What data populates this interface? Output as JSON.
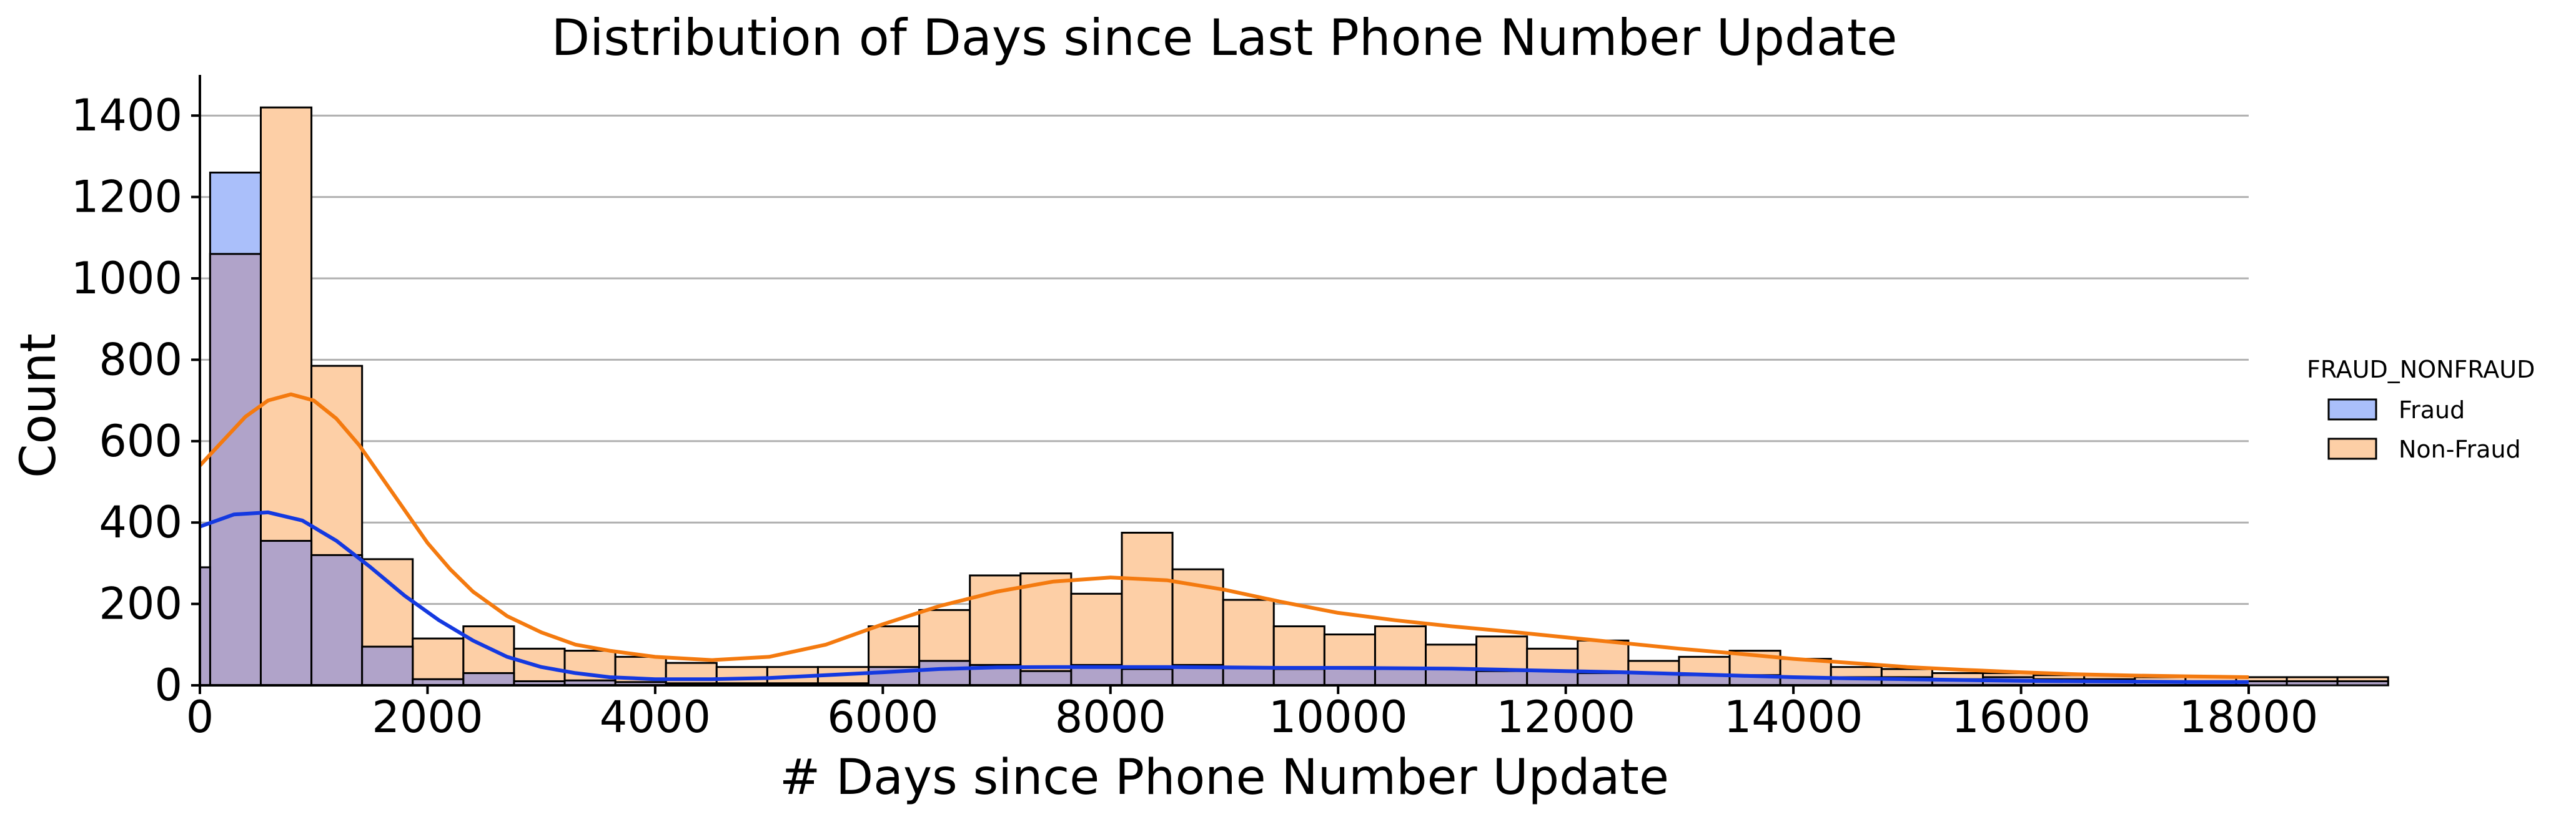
{
  "chart_data": {
    "type": "histogram",
    "title": "Distribution of Days since Last Phone Number Update",
    "xlabel": "# Days since Phone Number Update",
    "ylabel": "Count",
    "xlim": [
      0,
      18000
    ],
    "ylim": [
      0,
      1500
    ],
    "xticks": [
      0,
      2000,
      4000,
      6000,
      8000,
      10000,
      12000,
      14000,
      16000,
      18000
    ],
    "yticks": [
      0,
      200,
      400,
      600,
      800,
      1000,
      1200,
      1400
    ],
    "grid": "horizontal",
    "bin_width": 445,
    "bin_edges_start": 90,
    "overlap_color": "#b0a3c9",
    "legend": {
      "title": "FRAUD_NONFRAUD",
      "placement": "right",
      "entries": [
        "Fraud",
        "Non-Fraud"
      ]
    },
    "series": [
      {
        "name": "Fraud",
        "fill": "#aabffa",
        "line": "#1439e0",
        "counts": [
          1260,
          355,
          320,
          95,
          15,
          30,
          10,
          12,
          8,
          5,
          5,
          5,
          5,
          45,
          60,
          50,
          35,
          50,
          40,
          50,
          42,
          40,
          45,
          40,
          40,
          35,
          35,
          30,
          30,
          25,
          25,
          20,
          20,
          20,
          15,
          20,
          15,
          15,
          10,
          10,
          10,
          10,
          10
        ],
        "kde": [
          [
            0,
            390
          ],
          [
            300,
            420
          ],
          [
            600,
            425
          ],
          [
            900,
            405
          ],
          [
            1200,
            355
          ],
          [
            1500,
            290
          ],
          [
            1800,
            220
          ],
          [
            2100,
            160
          ],
          [
            2400,
            110
          ],
          [
            2700,
            70
          ],
          [
            3000,
            45
          ],
          [
            3300,
            30
          ],
          [
            3600,
            20
          ],
          [
            4000,
            15
          ],
          [
            4500,
            15
          ],
          [
            5000,
            18
          ],
          [
            5500,
            25
          ],
          [
            6000,
            32
          ],
          [
            6500,
            40
          ],
          [
            7000,
            44
          ],
          [
            7500,
            45
          ],
          [
            8000,
            45
          ],
          [
            8500,
            45
          ],
          [
            9000,
            44
          ],
          [
            9500,
            43
          ],
          [
            10000,
            43
          ],
          [
            10500,
            42
          ],
          [
            11000,
            41
          ],
          [
            11500,
            38
          ],
          [
            12000,
            35
          ],
          [
            12500,
            32
          ],
          [
            13000,
            28
          ],
          [
            13500,
            24
          ],
          [
            14000,
            20
          ],
          [
            14500,
            17
          ],
          [
            15000,
            15
          ],
          [
            15500,
            13
          ],
          [
            16000,
            11
          ],
          [
            16500,
            10
          ],
          [
            17000,
            9
          ],
          [
            17500,
            8
          ],
          [
            18000,
            8
          ]
        ]
      },
      {
        "name": "Non-Fraud",
        "fill": "#fdcfa6",
        "line": "#f47a0f",
        "counts": [
          1060,
          1420,
          785,
          310,
          115,
          145,
          90,
          85,
          70,
          55,
          45,
          45,
          45,
          145,
          185,
          270,
          275,
          225,
          375,
          285,
          210,
          145,
          125,
          145,
          100,
          120,
          90,
          110,
          60,
          70,
          85,
          65,
          45,
          40,
          30,
          30,
          25,
          25,
          20,
          20,
          20,
          20,
          20
        ],
        "kde": [
          [
            0,
            540
          ],
          [
            200,
            600
          ],
          [
            400,
            660
          ],
          [
            600,
            700
          ],
          [
            800,
            715
          ],
          [
            1000,
            700
          ],
          [
            1200,
            655
          ],
          [
            1400,
            590
          ],
          [
            1600,
            510
          ],
          [
            1800,
            430
          ],
          [
            2000,
            350
          ],
          [
            2200,
            285
          ],
          [
            2400,
            230
          ],
          [
            2700,
            170
          ],
          [
            3000,
            130
          ],
          [
            3300,
            100
          ],
          [
            3600,
            85
          ],
          [
            4000,
            70
          ],
          [
            4500,
            62
          ],
          [
            5000,
            70
          ],
          [
            5500,
            100
          ],
          [
            6000,
            150
          ],
          [
            6500,
            195
          ],
          [
            7000,
            230
          ],
          [
            7500,
            255
          ],
          [
            8000,
            265
          ],
          [
            8500,
            258
          ],
          [
            9000,
            235
          ],
          [
            9500,
            205
          ],
          [
            10000,
            178
          ],
          [
            10500,
            160
          ],
          [
            11000,
            145
          ],
          [
            11500,
            132
          ],
          [
            12000,
            118
          ],
          [
            12500,
            104
          ],
          [
            13000,
            90
          ],
          [
            13500,
            78
          ],
          [
            14000,
            65
          ],
          [
            14500,
            55
          ],
          [
            15000,
            45
          ],
          [
            15500,
            38
          ],
          [
            16000,
            32
          ],
          [
            16500,
            27
          ],
          [
            17000,
            24
          ],
          [
            17500,
            22
          ],
          [
            18000,
            20
          ]
        ]
      }
    ]
  }
}
